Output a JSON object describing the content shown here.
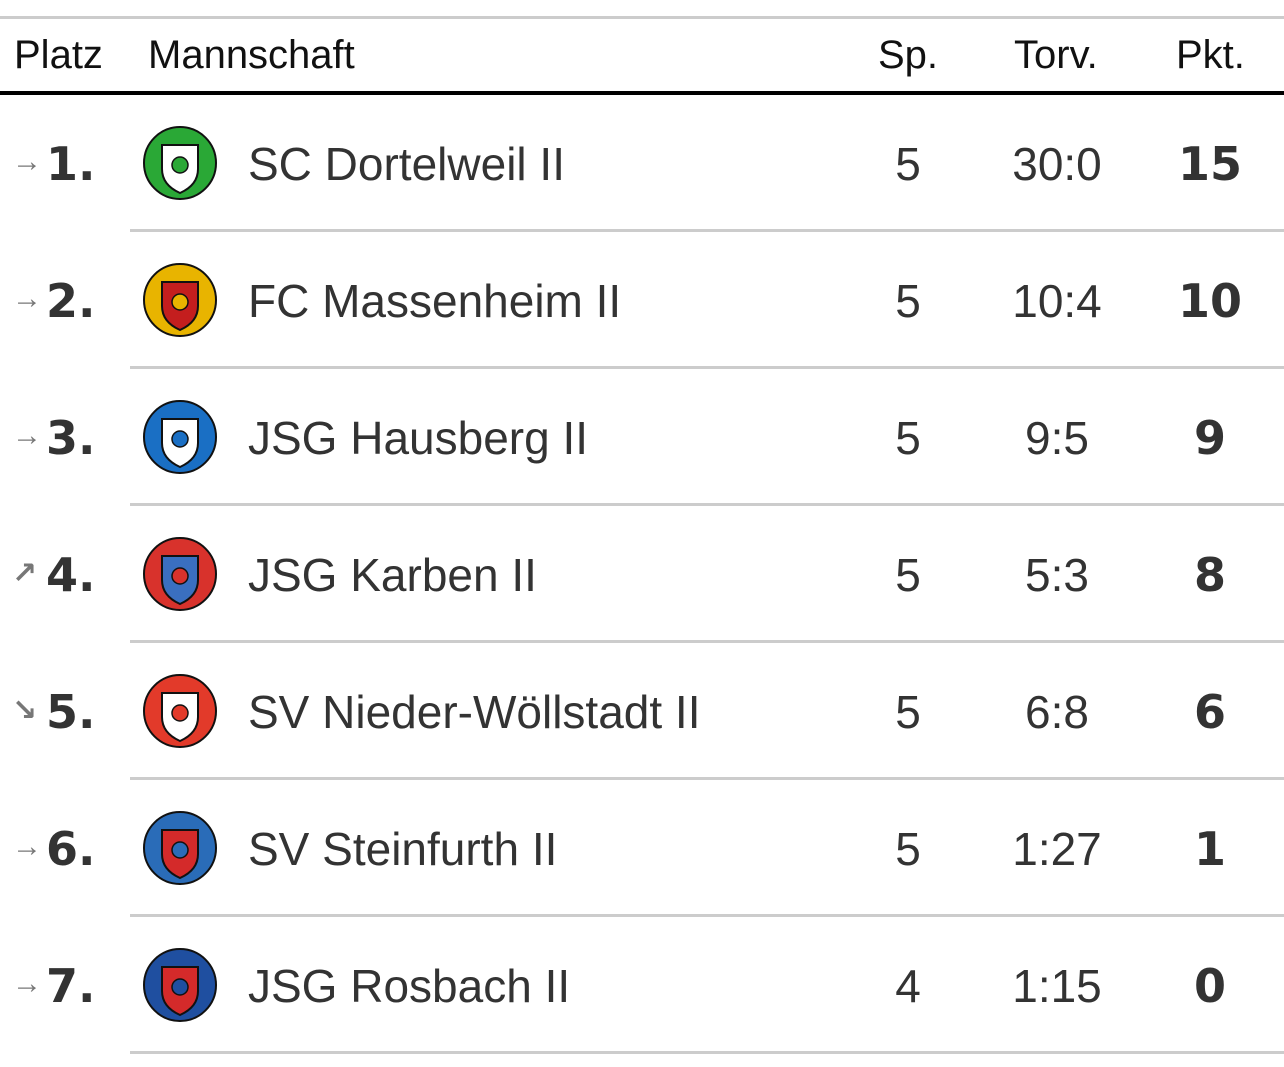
{
  "header": {
    "platz": "Platz",
    "mannschaft": "Mannschaft",
    "sp": "Sp.",
    "torv": "Torv.",
    "pkt": "Pkt."
  },
  "rows": [
    {
      "trend": "→",
      "trend_name": "arrow-right-icon",
      "rank": "1.",
      "team": "SC Dortelweil II",
      "sp": "5",
      "torv": "30:0",
      "pkt": "15",
      "colors": [
        "#2aa836",
        "#ffffff"
      ]
    },
    {
      "trend": "→",
      "trend_name": "arrow-right-icon",
      "rank": "2.",
      "team": "FC Massenheim II",
      "sp": "5",
      "torv": "10:4",
      "pkt": "10",
      "colors": [
        "#e8b400",
        "#c41e1e"
      ]
    },
    {
      "trend": "→",
      "trend_name": "arrow-right-icon",
      "rank": "3.",
      "team": "JSG Hausberg II",
      "sp": "5",
      "torv": "9:5",
      "pkt": "9",
      "colors": [
        "#1a6fc4",
        "#ffffff"
      ]
    },
    {
      "trend": "↗",
      "trend_name": "arrow-up-right-icon",
      "rank": "4.",
      "team": "JSG Karben II",
      "sp": "5",
      "torv": "5:3",
      "pkt": "8",
      "colors": [
        "#d8322c",
        "#3a6fc0"
      ]
    },
    {
      "trend": "↘",
      "trend_name": "arrow-down-right-icon",
      "rank": "5.",
      "team": "SV Nieder-Wöllstadt II",
      "sp": "5",
      "torv": "6:8",
      "pkt": "6",
      "colors": [
        "#e23a2a",
        "#ffffff"
      ]
    },
    {
      "trend": "→",
      "trend_name": "arrow-right-icon",
      "rank": "6.",
      "team": "SV Steinfurth II",
      "sp": "5",
      "torv": "1:27",
      "pkt": "1",
      "colors": [
        "#2a6cb8",
        "#d42a2a"
      ]
    },
    {
      "trend": "→",
      "trend_name": "arrow-right-icon",
      "rank": "7.",
      "team": "JSG Rosbach II",
      "sp": "4",
      "torv": "1:15",
      "pkt": "0",
      "colors": [
        "#1f4fa0",
        "#d42a2a"
      ]
    }
  ]
}
